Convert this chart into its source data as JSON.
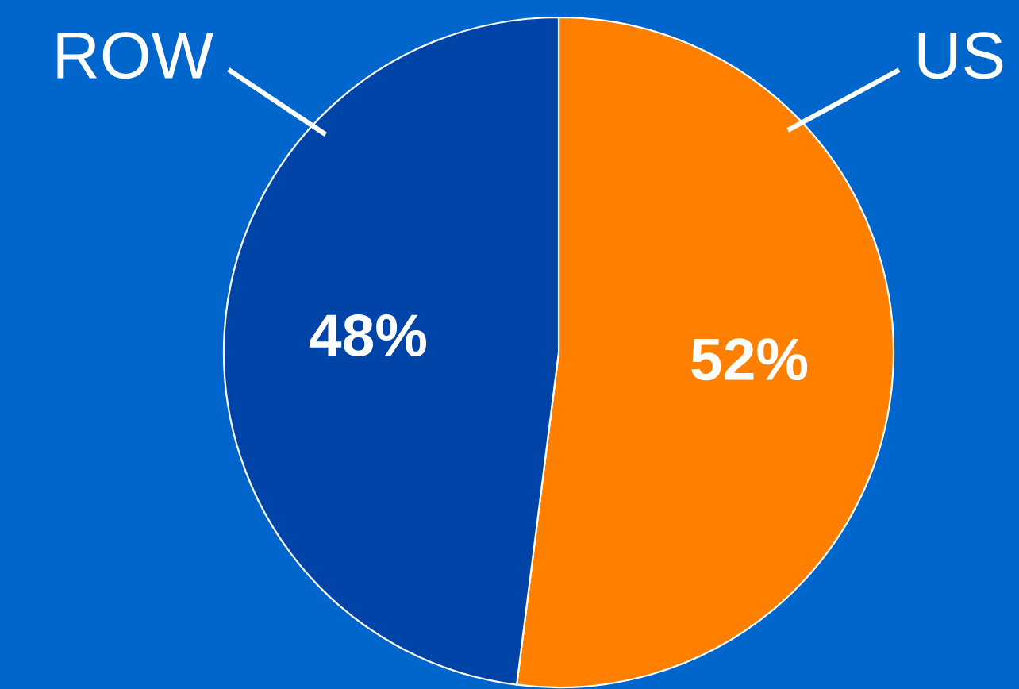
{
  "chart_data": {
    "type": "pie",
    "categories": [
      "US",
      "ROW"
    ],
    "values": [
      52,
      48
    ],
    "colors": [
      "#ff8000",
      "#0044a8"
    ],
    "value_labels": [
      "52%",
      "48%"
    ],
    "legend": false
  }
}
